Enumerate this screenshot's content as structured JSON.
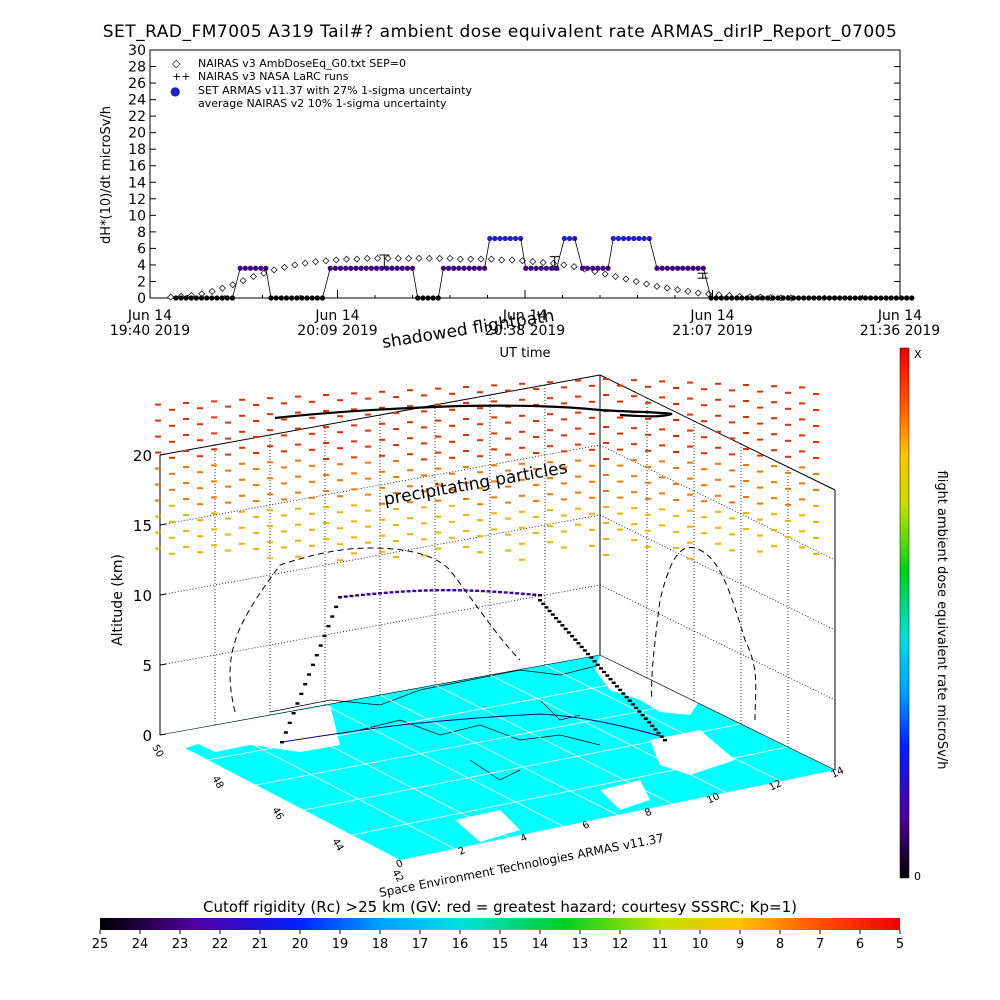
{
  "title": "SET_RAD_FM7005  A319 Tail#? ambient dose equivalent rate ARMAS_dirIP_Report_07005",
  "chart_data": [
    {
      "type": "scatter",
      "ylabel": "dH*(10)/dt microSv/h",
      "xlabel": "UT time",
      "ylim": [
        0,
        30
      ],
      "y_ticks": [
        "0",
        "2",
        "4",
        "6",
        "8",
        "10",
        "12",
        "14",
        "16",
        "18",
        "20",
        "22",
        "24",
        "26",
        "28",
        "30"
      ],
      "x_tick_labels": [
        {
          "date": "Jun 14",
          "time": "19:40 2019"
        },
        {
          "date": "Jun 14",
          "time": "20:09 2019"
        },
        {
          "date": "Jun 14",
          "time": "20:38 2019"
        },
        {
          "date": "Jun 14",
          "time": "21:07 2019"
        },
        {
          "date": "Jun 14",
          "time": "21:36 2019"
        }
      ],
      "legend_position": "top-left",
      "legend": [
        {
          "symbol": "◇",
          "label": "NAIRAS v3 AmbDoseEq_G0.txt SEP=0"
        },
        {
          "symbol": "++",
          "label": "NAIRAS v3 NASA LaRC runs"
        },
        {
          "symbol": "●",
          "label": "SET ARMAS v11.37 with 27% 1-sigma uncertainty"
        },
        {
          "symbol": "",
          "label": "average NAIRAS v2 10% 1-sigma uncertainty"
        }
      ],
      "series": [
        {
          "name": "NAIRAS v3 AmbDoseEq_G0.txt SEP=0",
          "marker": "diamond",
          "x_minutes": [
            4,
            8,
            12,
            16,
            20,
            24,
            28,
            32,
            36,
            40,
            44,
            48,
            52,
            56,
            60,
            64,
            68,
            72,
            76,
            80,
            84,
            88,
            92,
            96,
            100,
            104,
            108,
            112,
            116,
            120,
            124,
            128,
            132,
            136,
            140,
            144,
            148,
            152,
            156,
            160,
            164,
            168,
            172,
            176,
            180,
            184,
            188,
            192,
            196,
            200,
            204,
            208,
            212,
            216,
            220,
            224,
            228,
            232,
            236,
            240,
            244
          ],
          "values": [
            0.1,
            0.2,
            0.3,
            0.5,
            0.8,
            1.2,
            1.6,
            2.1,
            2.6,
            3.0,
            3.4,
            3.7,
            4.0,
            4.2,
            4.4,
            4.5,
            4.6,
            4.7,
            4.7,
            4.8,
            4.8,
            4.8,
            4.8,
            4.8,
            4.8,
            4.8,
            4.8,
            4.8,
            4.7,
            4.7,
            4.7,
            4.7,
            4.6,
            4.6,
            4.5,
            4.4,
            4.3,
            4.2,
            4.0,
            3.8,
            3.5,
            3.2,
            2.9,
            2.6,
            2.3,
            2.0,
            1.7,
            1.4,
            1.2,
            1.0,
            0.8,
            0.6,
            0.5,
            0.4,
            0.3,
            0.2,
            0.15,
            0.1,
            0.05,
            0.02,
            0.0
          ]
        },
        {
          "name": "NAIRAS v3 NASA LaRC runs",
          "marker": "errorbar",
          "x_minutes": [
            70,
            131,
            184
          ],
          "values": [
            4.4,
            4.2,
            2.7
          ],
          "errors": [
            0.8,
            0.8,
            0.3
          ]
        },
        {
          "name": "SET ARMAS v11.37 with 27% 1-sigma uncertainty",
          "marker": "dot",
          "segments": [
            {
              "x": [
                4,
                6,
                8,
                10,
                12,
                14,
                16,
                18,
                20,
                22,
                24,
                26
              ],
              "y": 0
            },
            {
              "x": [
                29,
                31,
                33,
                35,
                37,
                39
              ],
              "y": 3.6
            },
            {
              "x": [
                41,
                43,
                45,
                47,
                49,
                51,
                53,
                55,
                57,
                59,
                61
              ],
              "y": 0
            },
            {
              "x": [
                64,
                66,
                68,
                70,
                72,
                74,
                76,
                78,
                80,
                82,
                84,
                86,
                88,
                90,
                92,
                94,
                96
              ],
              "y": 3.6
            },
            {
              "x": [
                98,
                100,
                102,
                104,
                106
              ],
              "y": 0
            },
            {
              "x": [
                108,
                110,
                112,
                114,
                116,
                118,
                120,
                122,
                124
              ],
              "y": 3.6
            },
            {
              "x": [
                126,
                128,
                130,
                132,
                134,
                136,
                138
              ],
              "y": 7.2
            },
            {
              "x": [
                140,
                142,
                144,
                146,
                148,
                150,
                152
              ],
              "y": 3.6
            },
            {
              "x": [
                155,
                157,
                159
              ],
              "y": 7.2
            },
            {
              "x": [
                162,
                164,
                166,
                168,
                170,
                172
              ],
              "y": 3.6
            },
            {
              "x": [
                174,
                176,
                178,
                180,
                182,
                184,
                186,
                188
              ],
              "y": 7.2
            },
            {
              "x": [
                191,
                193,
                195,
                197,
                199,
                201,
                203,
                205,
                207,
                209
              ],
              "y": 3.6
            },
            {
              "x": [
                212,
                214,
                216,
                218,
                220,
                222,
                224,
                226,
                228,
                230,
                232,
                234,
                236,
                238,
                240,
                242,
                244,
                246,
                248,
                250,
                252,
                254,
                256,
                258,
                260,
                262,
                264,
                266,
                268,
                270,
                272,
                274,
                276,
                278,
                280,
                282,
                284,
                286,
                288,
                290
              ],
              "y": 0
            }
          ]
        }
      ]
    },
    {
      "type": "scatter",
      "ylabel": "Altitude (km)",
      "z_ticks": [
        "0",
        "5",
        "10",
        "15",
        "20"
      ],
      "lat_ticks": [
        "42",
        "44",
        "46",
        "48",
        "50"
      ],
      "lon_ticks": [
        "0",
        "2",
        "4",
        "6",
        "8",
        "10",
        "12",
        "14"
      ],
      "annotations": {
        "top_path": "shadowed flightpath",
        "precip": "precipitating particles",
        "credit": "Space Environment Technologies ARMAS v11.37"
      },
      "colorbar": {
        "label": "flight ambient dose equivalent rate microSv/h",
        "top": "X",
        "bottom": "0"
      }
    },
    {
      "type": "heatmap",
      "title": "Cutoff rigidity (Rc) >25 km (GV: red = greatest hazard; courtesy SSSRC; Kp=1)",
      "tick_labels": [
        "25",
        "24",
        "23",
        "22",
        "21",
        "20",
        "19",
        "18",
        "17",
        "16",
        "15",
        "14",
        "13",
        "12",
        "11",
        "10",
        "9",
        "8",
        "7",
        "6",
        "5"
      ]
    }
  ],
  "colors": {
    "armas_marker": "#2020c0",
    "armas_marker_low": "#300060",
    "map_water": "#00ffff",
    "map_land": "#ffffff",
    "precip_red": "#e02000",
    "precip_orange": "#f0a000"
  }
}
